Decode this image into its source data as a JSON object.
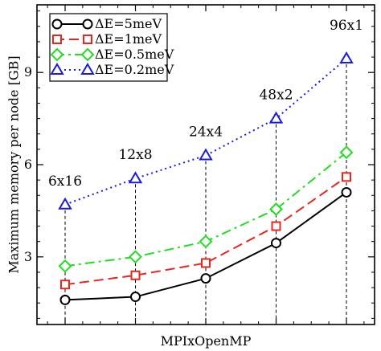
{
  "chart_data": {
    "type": "line",
    "xlabel": "MPIxOpenMP",
    "ylabel": "Maximum memory per node [GB]",
    "x": [
      1,
      2,
      3,
      4,
      5
    ],
    "xlim": [
      0.6,
      5.4
    ],
    "ylim": [
      0.8,
      11.2
    ],
    "yticks": [
      3,
      6,
      9
    ],
    "grid": false,
    "legend_position": "top-left",
    "configurations": [
      "6x16",
      "12x8",
      "24x4",
      "48x2",
      "96x1"
    ],
    "series": [
      {
        "name": "ΔE=5meV",
        "values": [
          1.6,
          1.7,
          2.3,
          3.45,
          5.1
        ],
        "color": "#000000",
        "marker": "circle",
        "dash": "solid"
      },
      {
        "name": "ΔE=1meV",
        "values": [
          2.1,
          2.4,
          2.8,
          4.0,
          5.6
        ],
        "color": "#e8251f",
        "marker": "square",
        "dash": "dashed"
      },
      {
        "name": "ΔE=0.5meV",
        "values": [
          2.7,
          3.0,
          3.5,
          4.55,
          6.4
        ],
        "color": "#22dd22",
        "marker": "diamond",
        "dash": "dashdot"
      },
      {
        "name": "ΔE=0.2meV",
        "values": [
          4.7,
          5.55,
          6.3,
          7.5,
          9.45
        ],
        "color": "#1a1ae0",
        "marker": "triangle",
        "dash": "dotted"
      }
    ]
  }
}
